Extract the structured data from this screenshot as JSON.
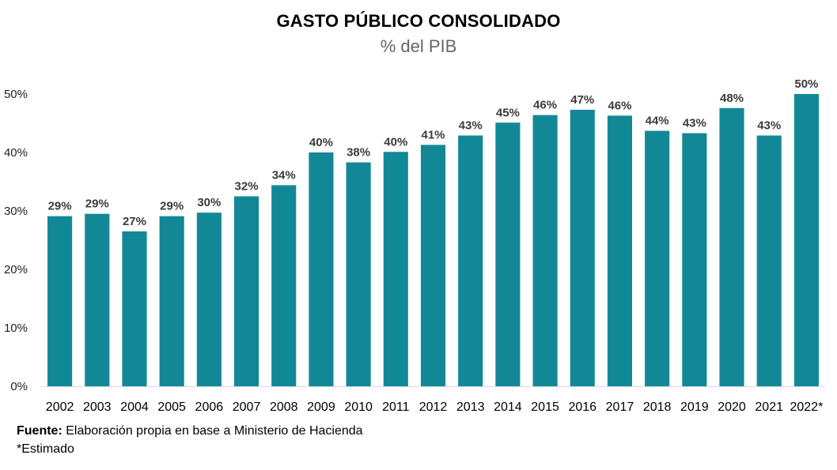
{
  "chart_data": {
    "type": "bar",
    "title": "GASTO PÚBLICO CONSOLIDADO",
    "subtitle": "% del PIB",
    "categories": [
      "2002",
      "2003",
      "2004",
      "2005",
      "2006",
      "2007",
      "2008",
      "2009",
      "2010",
      "2011",
      "2012",
      "2013",
      "2014",
      "2015",
      "2016",
      "2017",
      "2018",
      "2019",
      "2020",
      "2021",
      "2022*"
    ],
    "values": [
      29.1,
      29.5,
      26.5,
      29.1,
      29.7,
      32.5,
      34.4,
      40.0,
      38.3,
      40.1,
      41.3,
      42.9,
      45.1,
      46.4,
      47.3,
      46.3,
      43.7,
      43.3,
      47.6,
      42.9,
      50.0
    ],
    "data_labels": [
      "29%",
      "29%",
      "27%",
      "29%",
      "30%",
      "32%",
      "34%",
      "40%",
      "38%",
      "40%",
      "41%",
      "43%",
      "45%",
      "46%",
      "47%",
      "46%",
      "44%",
      "43%",
      "48%",
      "43%",
      "50%"
    ],
    "ylim": [
      0,
      50
    ],
    "yticks": [
      0,
      10,
      20,
      30,
      40,
      50
    ],
    "ytick_labels": [
      "0%",
      "10%",
      "20%",
      "30%",
      "40%",
      "50%"
    ],
    "xlabel": "",
    "ylabel": "",
    "grid": false,
    "bar_color": "#128897"
  },
  "footer": {
    "source_label": "Fuente:",
    "source_text": " Elaboración propia en base a Ministerio de Hacienda",
    "note": "*Estimado"
  }
}
